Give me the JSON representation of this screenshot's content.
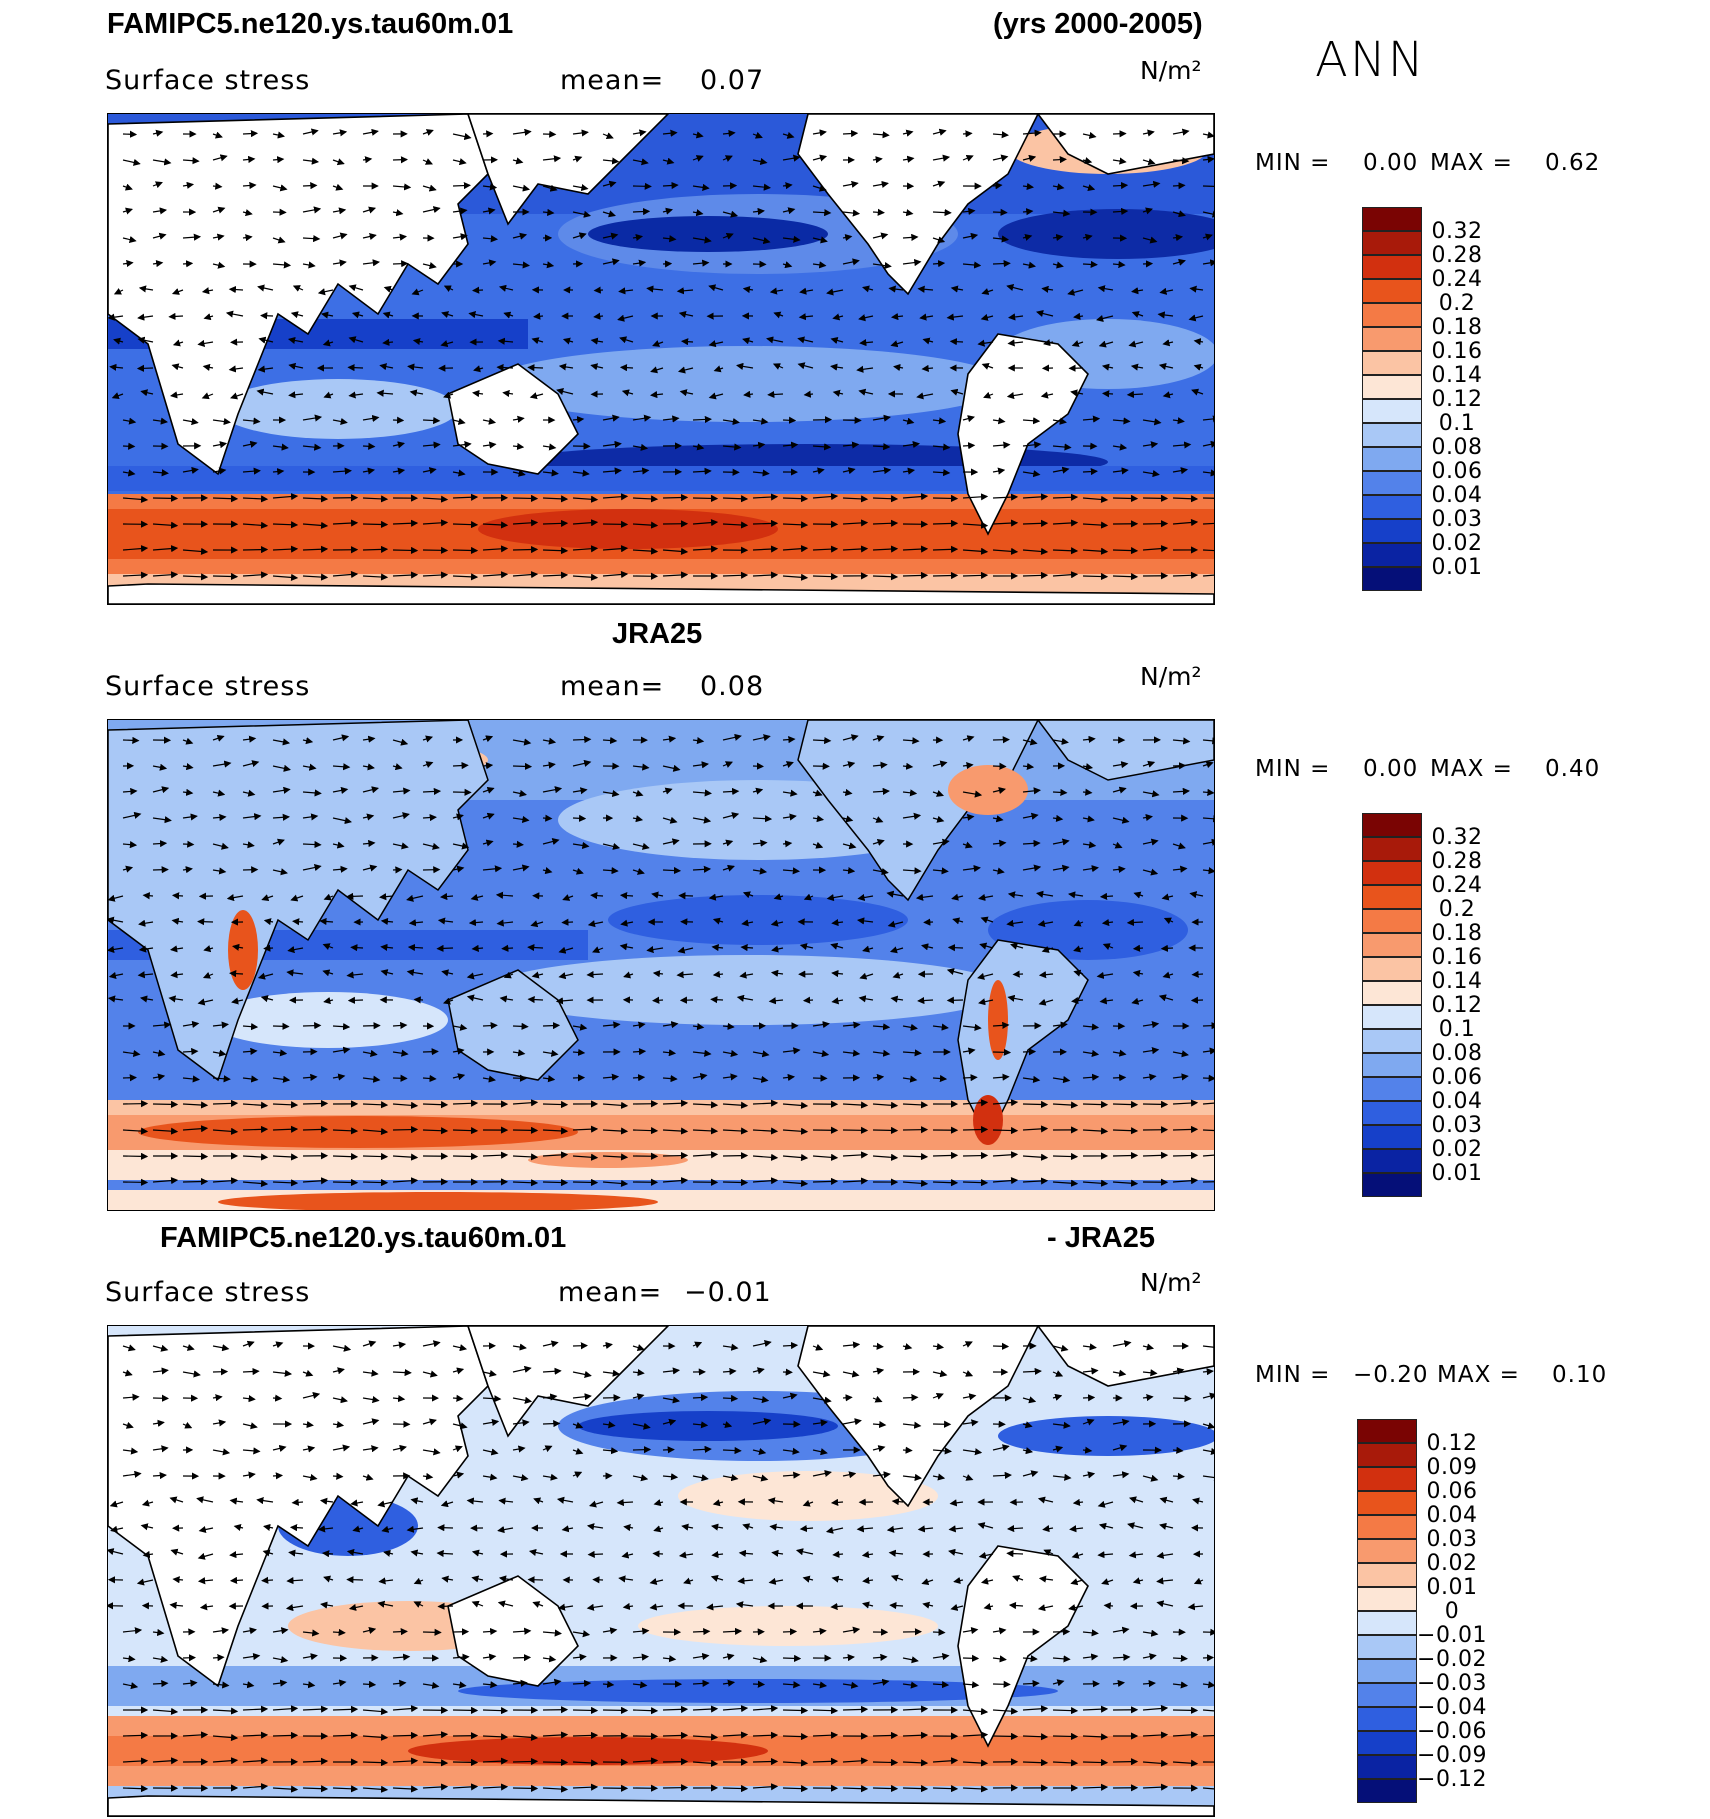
{
  "header": {
    "case_title": "FAMIPC5.ne120.ys.tau60m.01",
    "years": "(yrs 2000-2005)",
    "season": "ANN"
  },
  "panels": [
    {
      "id": "model",
      "variable": "Surface stress",
      "mean_label": "mean=",
      "mean_value": "0.07",
      "units": "N/m²",
      "min_label": "MIN =",
      "min_value": "0.00",
      "max_label": "MAX =",
      "max_value": "0.62",
      "colorbar_levels": [
        "0.32",
        "0.28",
        "0.24",
        "0.2",
        "0.18",
        "0.16",
        "0.14",
        "0.12",
        "0.1",
        "0.08",
        "0.06",
        "0.04",
        "0.03",
        "0.02",
        "0.01"
      ]
    },
    {
      "id": "obs",
      "title": "JRA25",
      "variable": "Surface stress",
      "mean_label": "mean=",
      "mean_value": "0.08",
      "units": "N/m²",
      "min_label": "MIN =",
      "min_value": "0.00",
      "max_label": "MAX =",
      "max_value": "0.40",
      "colorbar_levels": [
        "0.32",
        "0.28",
        "0.24",
        "0.2",
        "0.18",
        "0.16",
        "0.14",
        "0.12",
        "0.1",
        "0.08",
        "0.06",
        "0.04",
        "0.03",
        "0.02",
        "0.01"
      ]
    },
    {
      "id": "diff",
      "title_left": "FAMIPC5.ne120.ys.tau60m.01",
      "title_right": "- JRA25",
      "variable": "Surface stress",
      "mean_label": "mean=",
      "mean_value": "−0.01",
      "units": "N/m²",
      "min_label": "MIN =",
      "min_value": "−0.20",
      "max_label": "MAX =",
      "max_value": "0.10",
      "colorbar_levels": [
        "0.12",
        "0.09",
        "0.06",
        "0.04",
        "0.03",
        "0.02",
        "0.01",
        "0",
        "−0.01",
        "−0.02",
        "−0.03",
        "−0.04",
        "−0.06",
        "−0.09",
        "−0.12"
      ]
    }
  ],
  "colors": {
    "abs_scale": [
      "#7a0403",
      "#a81a0a",
      "#d2300f",
      "#e8541c",
      "#f47a45",
      "#f89a6e",
      "#fbc4a4",
      "#fde6d6",
      "#d6e6fb",
      "#a9c8f6",
      "#7fa9f0",
      "#5382ea",
      "#2f5fe0",
      "#1640c9",
      "#0a23a3",
      "#050f78"
    ],
    "diff_scale": [
      "#7a0403",
      "#a81a0a",
      "#d2300f",
      "#e8541c",
      "#f47a45",
      "#f89a6e",
      "#fbc4a4",
      "#fde6d6",
      "#d6e6fb",
      "#a9c8f6",
      "#7fa9f0",
      "#5382ea",
      "#2f5fe0",
      "#1640c9",
      "#0a23a3",
      "#050f78"
    ]
  }
}
